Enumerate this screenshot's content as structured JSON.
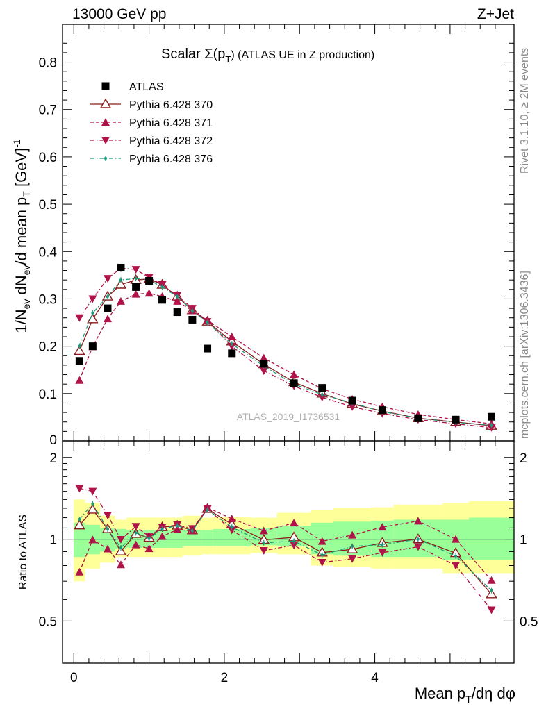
{
  "header": {
    "left": "13000 GeV pp",
    "right": "Z+Jet"
  },
  "side_labels": {
    "rivet": "Rivet 3.1.10, ≥ 2M events",
    "mcplots": "mcplots.cern.ch [arXiv:1306.3436]"
  },
  "chart_data": {
    "type": "scatter",
    "title_main": "Scalar Σ(p",
    "title_sub": "T",
    "title_tail": ") (ATLAS UE in Z production)",
    "watermark": "ATLAS_2019_I1736531",
    "xlabel": "Mean p_T/dη dφ",
    "ylabel_main": "1/N_ev dN_ev/d mean p_T [GeV]^-1",
    "ylabel_ratio": "Ratio to ATLAS",
    "xlim": [
      -0.15,
      5.85
    ],
    "ylim": [
      0,
      0.88
    ],
    "ratio_ylim": [
      0.35,
      2.3
    ],
    "grid": false,
    "legend_position": "top-left",
    "x_ticks": [
      0,
      2,
      4
    ],
    "y_ticks": [
      0.1,
      0.2,
      0.3,
      0.4,
      0.5,
      0.6,
      0.7,
      0.8
    ],
    "ratio_ticks": [
      0.5,
      1,
      2
    ],
    "x_bins": [
      0.075,
      0.25,
      0.45,
      0.625,
      0.825,
      1.0,
      1.175,
      1.375,
      1.575,
      1.775,
      2.1,
      2.525,
      2.925,
      3.3,
      3.7,
      4.1,
      4.575,
      5.075,
      5.55
    ],
    "band_edges": [
      0.0,
      0.15,
      0.35,
      0.55,
      0.7,
      0.95,
      1.05,
      1.3,
      1.45,
      1.7,
      1.85,
      2.35,
      2.7,
      3.15,
      3.45,
      3.95,
      4.25,
      4.9,
      5.25,
      5.85
    ],
    "band_yellow": [
      [
        0.7,
        1.4
      ],
      [
        0.78,
        1.36
      ],
      [
        0.82,
        1.22
      ],
      [
        0.86,
        1.18
      ],
      [
        0.86,
        1.2
      ],
      [
        0.86,
        1.2
      ],
      [
        0.86,
        1.2
      ],
      [
        0.86,
        1.2
      ],
      [
        0.87,
        1.22
      ],
      [
        0.88,
        1.2
      ],
      [
        0.88,
        1.21
      ],
      [
        0.89,
        1.2
      ],
      [
        0.88,
        1.25
      ],
      [
        0.8,
        1.28
      ],
      [
        0.79,
        1.3
      ],
      [
        0.78,
        1.31
      ],
      [
        0.78,
        1.34
      ],
      [
        0.75,
        1.36
      ],
      [
        0.75,
        1.38
      ]
    ],
    "band_green": [
      [
        0.86,
        1.15
      ],
      [
        0.88,
        1.13
      ],
      [
        0.9,
        1.1
      ],
      [
        0.92,
        1.09
      ],
      [
        0.93,
        1.08
      ],
      [
        0.93,
        1.08
      ],
      [
        0.93,
        1.08
      ],
      [
        0.93,
        1.08
      ],
      [
        0.94,
        1.08
      ],
      [
        0.94,
        1.08
      ],
      [
        0.94,
        1.09
      ],
      [
        0.95,
        1.1
      ],
      [
        0.94,
        1.12
      ],
      [
        0.88,
        1.15
      ],
      [
        0.87,
        1.16
      ],
      [
        0.86,
        1.17
      ],
      [
        0.86,
        1.18
      ],
      [
        0.84,
        1.18
      ],
      [
        0.84,
        1.2
      ]
    ],
    "series": [
      {
        "name": "ATLAS",
        "style": "data",
        "color": "#000000",
        "values": [
          0.169,
          0.2,
          0.28,
          0.366,
          0.325,
          0.338,
          0.298,
          0.272,
          0.256,
          0.195,
          0.185,
          0.163,
          0.122,
          0.112,
          0.085,
          0.065,
          0.048,
          0.045,
          0.051
        ]
      },
      {
        "name": "Pythia 6.428 370",
        "style": "open-triangle-up",
        "color": "#8b1a1a",
        "values": [
          0.19,
          0.257,
          0.305,
          0.33,
          0.34,
          0.342,
          0.33,
          0.305,
          0.276,
          0.252,
          0.21,
          0.162,
          0.124,
          0.1,
          0.078,
          0.063,
          0.048,
          0.04,
          0.032
        ]
      },
      {
        "name": "Pythia 6.428 371",
        "style": "filled-triangle-up",
        "color": "#b0124a",
        "values": [
          0.128,
          0.199,
          0.258,
          0.295,
          0.31,
          0.312,
          0.305,
          0.295,
          0.275,
          0.255,
          0.22,
          0.175,
          0.14,
          0.11,
          0.088,
          0.072,
          0.056,
          0.045,
          0.036
        ]
      },
      {
        "name": "Pythia 6.428 372",
        "style": "filled-triangle-down",
        "color": "#b0124a",
        "values": [
          0.26,
          0.3,
          0.343,
          0.365,
          0.362,
          0.345,
          0.33,
          0.307,
          0.28,
          0.252,
          0.2,
          0.148,
          0.116,
          0.092,
          0.072,
          0.058,
          0.045,
          0.036,
          0.028
        ]
      },
      {
        "name": "Pythia 6.428 376",
        "style": "dot",
        "color": "#1a9a7a",
        "values": [
          0.2,
          0.27,
          0.305,
          0.34,
          0.343,
          0.34,
          0.325,
          0.305,
          0.275,
          0.25,
          0.205,
          0.158,
          0.12,
          0.098,
          0.08,
          0.062,
          0.048,
          0.039,
          0.033
        ]
      }
    ]
  }
}
